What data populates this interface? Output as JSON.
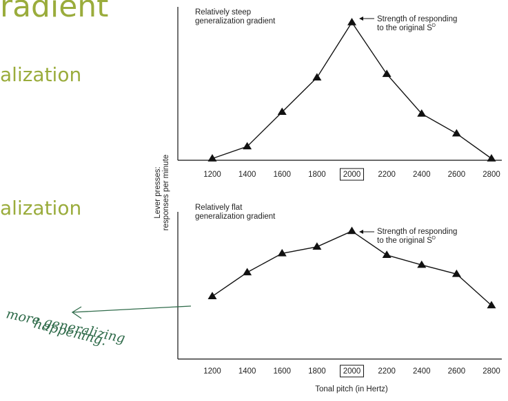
{
  "slide": {
    "title": "radient",
    "bullet_1": "alization",
    "bullet_2": "alization"
  },
  "colors": {
    "slide_text": "#9aac3c",
    "ink": "#2f6b4a",
    "chart": "#111111"
  },
  "y_axis_label_line1": "Lever presses:",
  "y_axis_label_line2": "responses per minute",
  "x_axis_label": "Tonal pitch (in Hertz)",
  "handwritten_note": {
    "line1": "more generalizing",
    "line2": "happening."
  },
  "chart_data": [
    {
      "type": "line",
      "title_line1": "Relatively steep",
      "title_line2": "generalization gradient",
      "annotation_line1": "Strength of responding",
      "annotation_line2": "to the original S",
      "annotation_superscript": "D",
      "x": [
        1200,
        1400,
        1600,
        1800,
        2000,
        2200,
        2400,
        2600,
        2800
      ],
      "y": [
        0.2,
        1.6,
        5.6,
        9.6,
        16.0,
        10.0,
        5.4,
        3.1,
        0.2
      ],
      "ylim": [
        0,
        17
      ],
      "boxed_tick": 2000,
      "marker": "triangle"
    },
    {
      "type": "line",
      "title_line1": "Relatively flat",
      "title_line2": "generalization gradient",
      "annotation_line1": "Strength of responding",
      "annotation_line2": "to the original S",
      "annotation_superscript": "D",
      "x": [
        1200,
        1400,
        1600,
        1800,
        2000,
        2200,
        2400,
        2600,
        2800
      ],
      "y": [
        7.6,
        10.5,
        12.8,
        13.6,
        15.5,
        12.6,
        11.4,
        10.3,
        6.5
      ],
      "ylim": [
        0,
        17
      ],
      "boxed_tick": 2000,
      "marker": "triangle"
    }
  ]
}
